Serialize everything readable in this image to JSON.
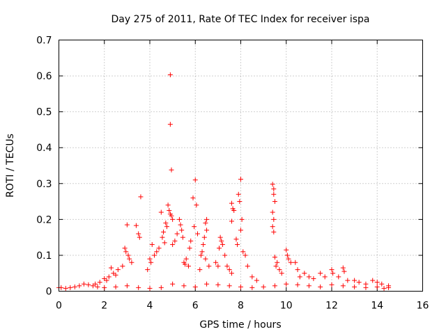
{
  "chart_data": {
    "type": "scatter",
    "title": "Day 275 of 2011, Rate Of TEC Index for receiver ispa",
    "xlabel": "GPS time / hours",
    "ylabel": "ROTI / TECUs",
    "xlim": [
      0,
      16
    ],
    "ylim": [
      0,
      0.7
    ],
    "xticks": [
      "0",
      "2",
      "4",
      "6",
      "8",
      "10",
      "12",
      "14",
      "16"
    ],
    "yticks": [
      "0",
      "0.1",
      "0.2",
      "0.3",
      "0.4",
      "0.5",
      "0.6",
      "0.7"
    ],
    "grid": true,
    "marker": "+",
    "color": "#ff0000",
    "series": [
      {
        "name": "ROTI",
        "points": [
          [
            4.9,
            0.603
          ],
          [
            4.9,
            0.465
          ],
          [
            4.95,
            0.338
          ],
          [
            3.6,
            0.263
          ],
          [
            6.0,
            0.31
          ],
          [
            8.0,
            0.312
          ],
          [
            9.4,
            0.298
          ],
          [
            9.45,
            0.285
          ],
          [
            9.45,
            0.27
          ],
          [
            9.5,
            0.25
          ],
          [
            9.4,
            0.22
          ],
          [
            9.45,
            0.2
          ],
          [
            9.4,
            0.18
          ],
          [
            9.45,
            0.165
          ],
          [
            7.9,
            0.27
          ],
          [
            7.95,
            0.25
          ],
          [
            7.6,
            0.245
          ],
          [
            7.65,
            0.23
          ],
          [
            7.7,
            0.225
          ],
          [
            8.05,
            0.2
          ],
          [
            8.0,
            0.17
          ],
          [
            7.6,
            0.195
          ],
          [
            7.8,
            0.145
          ],
          [
            7.85,
            0.13
          ],
          [
            4.8,
            0.24
          ],
          [
            4.85,
            0.225
          ],
          [
            4.9,
            0.215
          ],
          [
            4.95,
            0.21
          ],
          [
            5.0,
            0.2
          ],
          [
            4.5,
            0.22
          ],
          [
            4.7,
            0.19
          ],
          [
            4.75,
            0.18
          ],
          [
            4.6,
            0.165
          ],
          [
            4.55,
            0.15
          ],
          [
            5.3,
            0.2
          ],
          [
            5.35,
            0.185
          ],
          [
            5.4,
            0.17
          ],
          [
            5.2,
            0.16
          ],
          [
            5.45,
            0.15
          ],
          [
            5.1,
            0.14
          ],
          [
            5.0,
            0.13
          ],
          [
            4.65,
            0.135
          ],
          [
            4.4,
            0.12
          ],
          [
            4.3,
            0.11
          ],
          [
            4.2,
            0.1
          ],
          [
            4.1,
            0.13
          ],
          [
            4.0,
            0.09
          ],
          [
            4.05,
            0.08
          ],
          [
            3.9,
            0.06
          ],
          [
            3.0,
            0.185
          ],
          [
            3.4,
            0.183
          ],
          [
            3.5,
            0.16
          ],
          [
            3.55,
            0.15
          ],
          [
            2.9,
            0.12
          ],
          [
            2.95,
            0.11
          ],
          [
            3.05,
            0.1
          ],
          [
            3.1,
            0.09
          ],
          [
            3.2,
            0.08
          ],
          [
            2.8,
            0.07
          ],
          [
            2.6,
            0.06
          ],
          [
            2.4,
            0.05
          ],
          [
            2.3,
            0.065
          ],
          [
            2.5,
            0.045
          ],
          [
            2.2,
            0.04
          ],
          [
            2.1,
            0.03
          ],
          [
            2.0,
            0.035
          ],
          [
            1.8,
            0.025
          ],
          [
            1.6,
            0.02
          ],
          [
            5.9,
            0.26
          ],
          [
            6.05,
            0.24
          ],
          [
            5.95,
            0.18
          ],
          [
            6.1,
            0.16
          ],
          [
            5.8,
            0.14
          ],
          [
            5.75,
            0.12
          ],
          [
            5.6,
            0.09
          ],
          [
            5.5,
            0.08
          ],
          [
            5.55,
            0.075
          ],
          [
            5.7,
            0.07
          ],
          [
            6.5,
            0.2
          ],
          [
            6.45,
            0.19
          ],
          [
            6.5,
            0.17
          ],
          [
            6.4,
            0.15
          ],
          [
            6.35,
            0.13
          ],
          [
            6.3,
            0.11
          ],
          [
            6.25,
            0.1
          ],
          [
            6.45,
            0.09
          ],
          [
            6.6,
            0.07
          ],
          [
            6.2,
            0.06
          ],
          [
            7.1,
            0.15
          ],
          [
            7.15,
            0.14
          ],
          [
            7.2,
            0.13
          ],
          [
            7.05,
            0.12
          ],
          [
            7.3,
            0.1
          ],
          [
            6.9,
            0.08
          ],
          [
            7.0,
            0.07
          ],
          [
            7.4,
            0.07
          ],
          [
            7.5,
            0.06
          ],
          [
            7.6,
            0.05
          ],
          [
            8.1,
            0.11
          ],
          [
            8.2,
            0.1
          ],
          [
            8.3,
            0.07
          ],
          [
            8.5,
            0.04
          ],
          [
            8.7,
            0.03
          ],
          [
            9.5,
            0.095
          ],
          [
            9.6,
            0.08
          ],
          [
            9.55,
            0.07
          ],
          [
            9.7,
            0.06
          ],
          [
            9.8,
            0.05
          ],
          [
            10.0,
            0.115
          ],
          [
            10.05,
            0.1
          ],
          [
            10.1,
            0.09
          ],
          [
            10.2,
            0.08
          ],
          [
            10.4,
            0.08
          ],
          [
            10.5,
            0.06
          ],
          [
            10.6,
            0.04
          ],
          [
            10.8,
            0.05
          ],
          [
            11.0,
            0.04
          ],
          [
            11.2,
            0.035
          ],
          [
            11.5,
            0.05
          ],
          [
            11.7,
            0.04
          ],
          [
            12.0,
            0.06
          ],
          [
            12.05,
            0.05
          ],
          [
            12.3,
            0.04
          ],
          [
            12.5,
            0.065
          ],
          [
            12.55,
            0.055
          ],
          [
            12.7,
            0.03
          ],
          [
            13.0,
            0.03
          ],
          [
            13.2,
            0.025
          ],
          [
            13.5,
            0.02
          ],
          [
            13.8,
            0.03
          ],
          [
            14.0,
            0.025
          ],
          [
            14.2,
            0.02
          ],
          [
            14.5,
            0.015
          ],
          [
            0.0,
            0.01
          ],
          [
            0.1,
            0.01
          ],
          [
            0.3,
            0.008
          ],
          [
            0.5,
            0.01
          ],
          [
            0.7,
            0.012
          ],
          [
            0.9,
            0.015
          ],
          [
            1.1,
            0.02
          ],
          [
            1.3,
            0.018
          ],
          [
            1.5,
            0.015
          ],
          [
            1.7,
            0.012
          ],
          [
            2.0,
            0.01
          ],
          [
            2.5,
            0.012
          ],
          [
            3.0,
            0.015
          ],
          [
            3.5,
            0.01
          ],
          [
            4.0,
            0.008
          ],
          [
            4.5,
            0.01
          ],
          [
            5.0,
            0.02
          ],
          [
            5.5,
            0.015
          ],
          [
            6.0,
            0.012
          ],
          [
            6.5,
            0.02
          ],
          [
            7.0,
            0.018
          ],
          [
            7.5,
            0.015
          ],
          [
            8.0,
            0.012
          ],
          [
            8.5,
            0.01
          ],
          [
            9.0,
            0.012
          ],
          [
            9.5,
            0.015
          ],
          [
            10.0,
            0.02
          ],
          [
            10.5,
            0.018
          ],
          [
            11.0,
            0.015
          ],
          [
            11.5,
            0.012
          ],
          [
            12.0,
            0.018
          ],
          [
            12.5,
            0.015
          ],
          [
            13.0,
            0.012
          ],
          [
            13.5,
            0.01
          ],
          [
            14.0,
            0.012
          ],
          [
            14.3,
            0.008
          ],
          [
            14.5,
            0.01
          ]
        ]
      }
    ]
  }
}
